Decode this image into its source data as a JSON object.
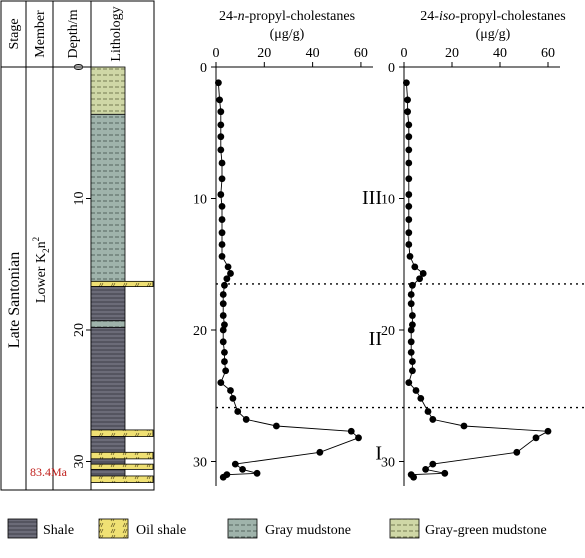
{
  "column_headers": {
    "stage": "Stage",
    "member": "Member",
    "depth": "Depth/m",
    "lithology": "Lithology"
  },
  "stage_label": "Late Santonian",
  "member_label": {
    "base": "Lower K",
    "sub": "2",
    "n": "n",
    "sup": "2"
  },
  "age_label": "83.4Ma",
  "depth_ticks": [
    "0",
    "10",
    "20",
    "30"
  ],
  "lithology_units": [
    {
      "type": "gray-green-mudstone",
      "top": 0.0,
      "bottom": 3.6
    },
    {
      "type": "gray-mudstone",
      "top": 3.6,
      "bottom": 16.3
    },
    {
      "type": "oil-shale",
      "top": 16.3,
      "bottom": 16.7
    },
    {
      "type": "shale",
      "top": 16.7,
      "bottom": 19.3
    },
    {
      "type": "gray-mudstone",
      "top": 19.3,
      "bottom": 19.8
    },
    {
      "type": "shale",
      "top": 19.8,
      "bottom": 27.6
    },
    {
      "type": "oil-shale",
      "top": 27.6,
      "bottom": 28.1
    },
    {
      "type": "shale",
      "top": 28.1,
      "bottom": 29.3
    },
    {
      "type": "oil-shale",
      "top": 29.3,
      "bottom": 29.8
    },
    {
      "type": "shale",
      "top": 29.8,
      "bottom": 30.2
    },
    {
      "type": "oil-shale",
      "top": 30.2,
      "bottom": 30.6
    },
    {
      "type": "shale",
      "top": 30.6,
      "bottom": 31.1
    },
    {
      "type": "oil-shale",
      "top": 31.1,
      "bottom": 31.6
    }
  ],
  "lithology_colors": {
    "shale": "#6b6b78",
    "oil-shale": "#f0e174",
    "gray-mudstone": "#9fb3ab",
    "gray-green-mudstone": "#cfd7a6"
  },
  "legend": [
    {
      "type": "shale",
      "label": "Shale"
    },
    {
      "type": "oil-shale",
      "label": "Oil shale"
    },
    {
      "type": "gray-mudstone",
      "label": "Gray mudstone"
    },
    {
      "type": "gray-green-mudstone",
      "label": "Gray-green mudstone"
    }
  ],
  "zone_boundaries_depth": [
    16.5,
    25.9
  ],
  "zones": [
    {
      "label": "III",
      "depth": 9.9
    },
    {
      "label": "II",
      "depth": 20.6
    },
    {
      "label": "I",
      "depth": 29.3
    }
  ],
  "chart_data": [
    {
      "type": "line",
      "title": {
        "pre": "24-",
        "italic": "n",
        "post": "-propyl-cholestanes"
      },
      "unit": "(μg/g)",
      "xlim": [
        0,
        65
      ],
      "xticks": [
        "0",
        "20",
        "40",
        "60"
      ],
      "ylim": [
        0,
        31.6
      ],
      "inverted_y": true,
      "y": [
        1.2,
        2.5,
        3.4,
        4.4,
        5.3,
        6.3,
        7.3,
        8.5,
        9.7,
        10.6,
        11.6,
        12.6,
        13.5,
        14.4,
        15.2,
        15.7,
        16.1,
        16.6,
        17.3,
        18.0,
        18.9,
        19.6,
        20.0,
        20.9,
        21.7,
        22.4,
        23.1,
        24.0,
        24.6,
        25.2,
        26.2,
        26.8,
        27.3,
        27.7,
        28.2,
        29.3,
        30.2,
        30.6,
        30.9,
        31.0,
        31.2
      ],
      "x": [
        1.0,
        1.5,
        2.0,
        2.0,
        2.0,
        2.0,
        2.5,
        2.5,
        2.0,
        2.5,
        2.5,
        2.5,
        2.5,
        2.5,
        5.0,
        6.0,
        4.5,
        3.5,
        3.0,
        3.0,
        3.0,
        3.5,
        3.0,
        3.0,
        3.5,
        3.5,
        4.0,
        2.0,
        6.0,
        7.0,
        9.0,
        12.5,
        25.0,
        56.0,
        59.0,
        43.0,
        8.0,
        11.0,
        17.0,
        4.5,
        3.0
      ]
    },
    {
      "type": "line",
      "title": {
        "pre": "24-",
        "italic": "iso",
        "post": "-propyl-cholestanes"
      },
      "unit": "(μg/g)",
      "xlim": [
        0,
        65
      ],
      "xticks": [
        "0",
        "20",
        "40",
        "60"
      ],
      "ylim": [
        0,
        31.6
      ],
      "inverted_y": true,
      "y": [
        1.2,
        2.5,
        3.4,
        4.4,
        5.3,
        6.3,
        7.3,
        8.5,
        9.7,
        10.6,
        11.6,
        12.6,
        13.5,
        14.4,
        15.2,
        15.7,
        16.1,
        16.6,
        17.3,
        18.0,
        18.9,
        19.6,
        20.0,
        20.9,
        21.7,
        22.4,
        23.1,
        24.0,
        24.6,
        25.2,
        26.2,
        26.8,
        27.3,
        27.7,
        28.2,
        29.3,
        30.2,
        30.6,
        30.9,
        31.0,
        31.2
      ],
      "x": [
        1.0,
        1.5,
        1.5,
        2.0,
        2.0,
        2.0,
        2.0,
        2.0,
        2.0,
        2.0,
        2.0,
        2.0,
        2.0,
        2.5,
        4.5,
        8.0,
        6.5,
        3.5,
        3.0,
        3.0,
        3.5,
        3.5,
        3.0,
        3.0,
        3.0,
        3.5,
        3.5,
        2.0,
        5.0,
        7.0,
        10.0,
        12.0,
        25.0,
        60.0,
        55.0,
        47.0,
        12.0,
        9.0,
        17.0,
        3.0,
        4.0
      ]
    }
  ]
}
